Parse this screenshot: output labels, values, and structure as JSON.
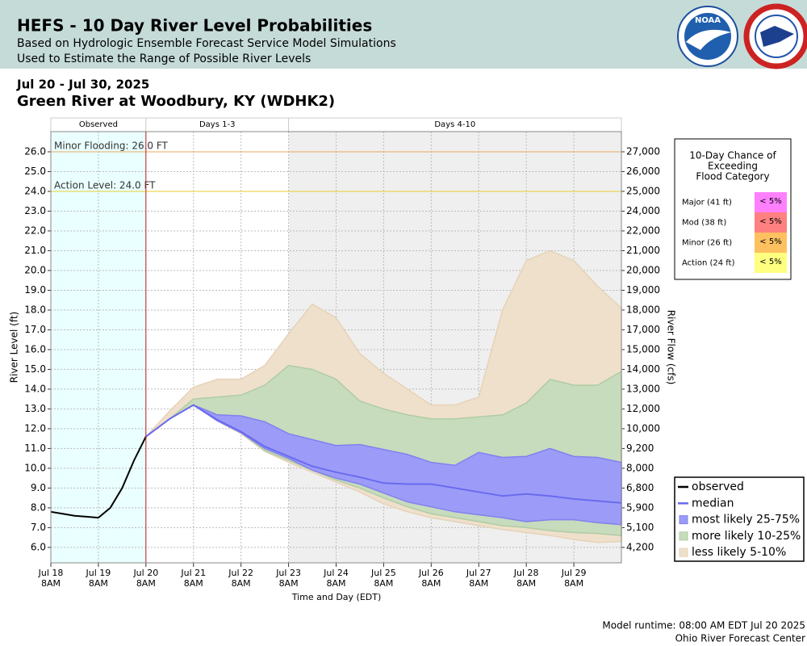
{
  "header": {
    "title": "HEFS - 10 Day River Level Probabilities",
    "subtitles": [
      "Based on Hydrologic Ensemble Forecast Service Model Simulations",
      "Used to Estimate the Range of Possible River Levels"
    ],
    "logo_text": "NOAA"
  },
  "chart_data": {
    "type": "hefs",
    "date_range": "Jul 20 - Jul 30, 2025",
    "title": "Green River at Woodbury, KY (WDHK2)",
    "xlabel": "Time and Day (EDT)",
    "ylabel": "River Level (ft)",
    "y2label": "River Flow (cfs)",
    "xlim": [
      0,
      12
    ],
    "ylim": [
      5.22,
      27.02
    ],
    "grid": true,
    "xticks": [
      {
        "value": 0,
        "label": "Jul 18"
      },
      {
        "value": 1,
        "label": "Jul 19"
      },
      {
        "value": 2,
        "label": "Jul 20"
      },
      {
        "value": 3,
        "label": "Jul 21"
      },
      {
        "value": 4,
        "label": "Jul 22"
      },
      {
        "value": 5,
        "label": "Jul 23"
      },
      {
        "value": 6,
        "label": "Jul 24"
      },
      {
        "value": 7,
        "label": "Jul 25"
      },
      {
        "value": 8,
        "label": "Jul 26"
      },
      {
        "value": 9,
        "label": "Jul 27"
      },
      {
        "value": 10,
        "label": "Jul 28"
      },
      {
        "value": 11,
        "label": "Jul 29"
      }
    ],
    "xtick_time_labels": [
      "8AM",
      "8AM",
      "8AM",
      "8AM",
      "8AM",
      "8AM",
      "8AM",
      "8AM",
      "8AM",
      "8AM",
      "8AM",
      "8AM"
    ],
    "yticks": [
      {
        "value": 6,
        "label": "6.0"
      },
      {
        "value": 7,
        "label": "7.0"
      },
      {
        "value": 8,
        "label": "8.0"
      },
      {
        "value": 9,
        "label": "9.0"
      },
      {
        "value": 10,
        "label": "10.0"
      },
      {
        "value": 11,
        "label": "11.0"
      },
      {
        "value": 12,
        "label": "12.0"
      },
      {
        "value": 13,
        "label": "13.0"
      },
      {
        "value": 14,
        "label": "14.0"
      },
      {
        "value": 15,
        "label": "15.0"
      },
      {
        "value": 16,
        "label": "16.0"
      },
      {
        "value": 17,
        "label": "17.0"
      },
      {
        "value": 18,
        "label": "18.0"
      },
      {
        "value": 19,
        "label": "19.0"
      },
      {
        "value": 20,
        "label": "20.0"
      },
      {
        "value": 21,
        "label": "21.0"
      },
      {
        "value": 22,
        "label": "22.0"
      },
      {
        "value": 23,
        "label": "23.0"
      },
      {
        "value": 24,
        "label": "24.0"
      },
      {
        "value": 25,
        "label": "25.0"
      },
      {
        "value": 26,
        "label": "26.0"
      }
    ],
    "y2ticks": [
      {
        "value": 4200,
        "label": "4,200"
      },
      {
        "value": 5100,
        "label": "5,100"
      },
      {
        "value": 5900,
        "label": "5,900"
      },
      {
        "value": 6800,
        "label": "6,800"
      },
      {
        "value": 8000,
        "label": "8,000"
      },
      {
        "value": 9200,
        "label": "9,200"
      },
      {
        "value": 10000,
        "label": "10,000"
      },
      {
        "value": 12000,
        "label": "12,000"
      },
      {
        "value": 13000,
        "label": "13,000"
      },
      {
        "value": 14000,
        "label": "14,000"
      },
      {
        "value": 15000,
        "label": "15,000"
      },
      {
        "value": 17000,
        "label": "17,000"
      },
      {
        "value": 18000,
        "label": "18,000"
      },
      {
        "value": 19000,
        "label": "19,000"
      },
      {
        "value": 20000,
        "label": "20,000"
      },
      {
        "value": 21000,
        "label": "21,000"
      },
      {
        "value": 22000,
        "label": "22,000"
      },
      {
        "value": 24000,
        "label": "24,000"
      },
      {
        "value": 25000,
        "label": "25,000"
      },
      {
        "value": 26000,
        "label": "26,000"
      },
      {
        "value": 27000,
        "label": "27,000"
      }
    ],
    "periods": [
      {
        "label": "Observed",
        "start": 0,
        "end": 2,
        "color": "#eaffff"
      },
      {
        "label": "Days 1-3",
        "start": 2,
        "end": 5,
        "color": "#ffffff"
      },
      {
        "label": "Days 4-10",
        "start": 5,
        "end": 12,
        "color": "#efefef"
      }
    ],
    "forecast_start": 2,
    "thresholds": [
      {
        "label": "Minor Flooding: 26.0 FT",
        "value": 26,
        "color": "#e8a860"
      },
      {
        "label": "Action Level: 24.0 FT",
        "value": 24,
        "color": "#e8cc30"
      }
    ],
    "observed": {
      "name": "observed",
      "color": "#000000",
      "x": [
        0,
        0.25,
        0.5,
        0.75,
        1,
        1.25,
        1.5,
        1.75,
        2
      ],
      "values": [
        7.8,
        7.7,
        7.6,
        7.55,
        7.5,
        8.0,
        9.0,
        10.4,
        11.6
      ]
    },
    "forecast_x": [
      2,
      2.5,
      3,
      3.5,
      4,
      4.5,
      5,
      5.5,
      6,
      6.5,
      7,
      7.5,
      8,
      8.5,
      9,
      9.5,
      10,
      10.5,
      11,
      11.5,
      12
    ],
    "bands": [
      {
        "name": "less likely 5-10%",
        "color": "#efe0cc",
        "edge": "#e6d2b8",
        "upper": [
          11.6,
          12.9,
          14.1,
          14.5,
          14.5,
          15.2,
          16.8,
          18.3,
          17.6,
          15.8,
          14.8,
          14.0,
          13.2,
          13.2,
          13.6,
          18.0,
          20.5,
          21.0,
          20.5,
          19.2,
          18.1
        ],
        "lower": [
          11.6,
          12.5,
          13.2,
          12.4,
          11.75,
          10.85,
          10.3,
          9.8,
          9.3,
          8.8,
          8.2,
          7.8,
          7.5,
          7.3,
          7.1,
          6.9,
          6.75,
          6.6,
          6.4,
          6.25,
          6.3
        ]
      },
      {
        "name": "more likely 10-25%",
        "color": "#c7dbbd",
        "edge": "#b0cca4",
        "upper": [
          11.6,
          12.5,
          13.5,
          13.6,
          13.7,
          14.2,
          15.2,
          15.0,
          14.5,
          13.4,
          13.0,
          12.7,
          12.5,
          12.5,
          12.6,
          12.7,
          13.3,
          14.5,
          14.2,
          14.2,
          14.9
        ],
        "lower": [
          11.6,
          12.5,
          13.2,
          12.4,
          11.8,
          10.9,
          10.4,
          9.9,
          9.4,
          9.0,
          8.5,
          8.05,
          7.7,
          7.5,
          7.3,
          7.1,
          7.0,
          6.85,
          6.75,
          6.7,
          6.6
        ]
      },
      {
        "name": "most likely 25-75%",
        "color": "#9c9cf8",
        "edge": "#8080f0",
        "upper": [
          11.6,
          12.5,
          13.2,
          12.7,
          12.65,
          12.35,
          11.75,
          11.45,
          11.15,
          11.2,
          10.95,
          10.7,
          10.3,
          10.15,
          10.8,
          10.55,
          10.6,
          11.0,
          10.6,
          10.55,
          10.3
        ],
        "lower": [
          11.6,
          12.5,
          13.2,
          12.4,
          11.8,
          11.0,
          10.5,
          9.9,
          9.5,
          9.2,
          8.75,
          8.3,
          8.05,
          7.8,
          7.65,
          7.5,
          7.3,
          7.4,
          7.4,
          7.25,
          7.15
        ]
      }
    ],
    "median": {
      "name": "median",
      "color": "#6a6af0",
      "values": [
        11.6,
        12.5,
        13.2,
        12.45,
        11.85,
        11.1,
        10.6,
        10.1,
        9.8,
        9.55,
        9.25,
        9.2,
        9.2,
        9.0,
        8.8,
        8.6,
        8.7,
        8.6,
        8.45,
        8.35,
        8.25
      ]
    },
    "chance_table": {
      "title_lines": [
        "10-Day Chance of",
        "Exceeding",
        "Flood Category"
      ],
      "rows": [
        {
          "category": "Major (41 ft)",
          "chance": "< 5%",
          "color": "#ff80ff"
        },
        {
          "category": "Mod (38 ft)",
          "chance": "< 5%",
          "color": "#ff8080"
        },
        {
          "category": "Minor (26 ft)",
          "chance": "< 5%",
          "color": "#ffc060"
        },
        {
          "category": "Action (24 ft)",
          "chance": "< 5%",
          "color": "#ffff80"
        }
      ]
    }
  },
  "footer": [
    "Model runtime: 08:00 AM EDT Jul 20 2025",
    "Ohio River Forecast Center"
  ]
}
